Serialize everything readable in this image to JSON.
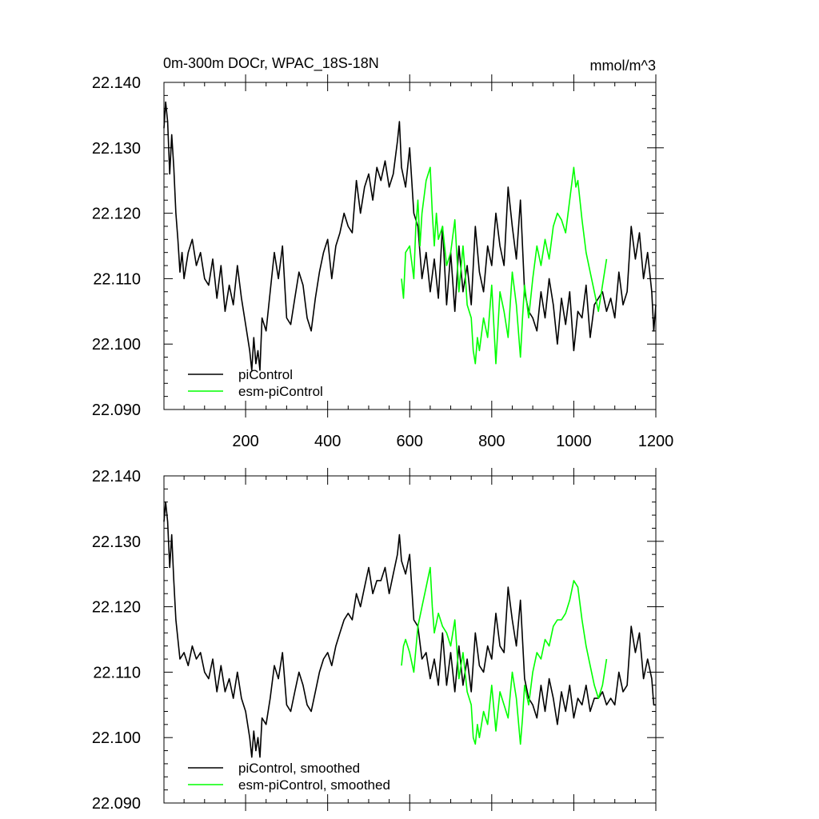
{
  "page": {
    "title_left": "0m-300m DOCr, WPAC_18S-18N",
    "title_right": "mmol/m^3"
  },
  "colors": {
    "piControl": "#000000",
    "esm": "#00ff00"
  },
  "chart_data": [
    {
      "type": "line",
      "panel": "top",
      "title": "0m-300m DOCr, WPAC_18S-18N",
      "units": "mmol/m^3",
      "xlim": [
        1,
        1200
      ],
      "ylim": [
        22.09,
        22.14
      ],
      "yticks": [
        "22.140",
        "22.130",
        "22.120",
        "22.110",
        "22.100",
        "22.090"
      ],
      "xticks": [
        "200",
        "400",
        "600",
        "800",
        "1000",
        "1200"
      ],
      "legend": [
        "piControl",
        "esm-piControl"
      ],
      "legend_position": "bottom-left",
      "series": [
        {
          "name": "piControl",
          "color": "#000000",
          "x": [
            1,
            5,
            10,
            15,
            20,
            25,
            30,
            35,
            40,
            45,
            50,
            60,
            70,
            80,
            90,
            100,
            110,
            120,
            130,
            140,
            150,
            160,
            170,
            180,
            190,
            200,
            210,
            215,
            220,
            225,
            230,
            235,
            240,
            250,
            260,
            270,
            280,
            290,
            300,
            310,
            320,
            330,
            340,
            350,
            360,
            370,
            380,
            390,
            400,
            410,
            420,
            430,
            440,
            450,
            460,
            470,
            480,
            490,
            500,
            510,
            520,
            530,
            540,
            550,
            560,
            570,
            575,
            580,
            590,
            600,
            610,
            620,
            630,
            640,
            650,
            660,
            670,
            680,
            690,
            700,
            710,
            720,
            730,
            740,
            750,
            760,
            770,
            780,
            790,
            800,
            810,
            820,
            830,
            840,
            850,
            860,
            870,
            880,
            890,
            900,
            910,
            920,
            930,
            940,
            950,
            960,
            970,
            980,
            990,
            1000,
            1010,
            1020,
            1030,
            1040,
            1050,
            1060,
            1070,
            1080,
            1090,
            1100,
            1110,
            1120,
            1130,
            1140,
            1150,
            1160,
            1170,
            1180,
            1190,
            1195,
            1200
          ],
          "y": [
            22.133,
            22.137,
            22.134,
            22.126,
            22.132,
            22.127,
            22.12,
            22.116,
            22.111,
            22.114,
            22.11,
            22.114,
            22.116,
            22.112,
            22.114,
            22.11,
            22.109,
            22.113,
            22.107,
            22.112,
            22.105,
            22.109,
            22.106,
            22.112,
            22.107,
            22.103,
            22.099,
            22.096,
            22.101,
            22.097,
            22.099,
            22.096,
            22.104,
            22.102,
            22.108,
            22.114,
            22.11,
            22.115,
            22.104,
            22.103,
            22.107,
            22.111,
            22.109,
            22.104,
            22.102,
            22.107,
            22.111,
            22.114,
            22.116,
            22.11,
            22.115,
            22.117,
            22.12,
            22.118,
            22.117,
            22.125,
            22.12,
            22.124,
            22.126,
            22.122,
            22.127,
            22.125,
            22.128,
            22.124,
            22.126,
            22.131,
            22.134,
            22.127,
            22.124,
            22.13,
            22.12,
            22.118,
            22.11,
            22.114,
            22.108,
            22.113,
            22.107,
            22.118,
            22.106,
            22.114,
            22.105,
            22.115,
            22.108,
            22.112,
            22.106,
            22.118,
            22.111,
            22.108,
            22.115,
            22.112,
            22.12,
            22.115,
            22.112,
            22.124,
            22.118,
            22.113,
            22.122,
            22.108,
            22.105,
            22.104,
            22.102,
            22.108,
            22.104,
            22.11,
            22.106,
            22.1,
            22.107,
            22.103,
            22.108,
            22.099,
            22.105,
            22.104,
            22.109,
            22.101,
            22.106,
            22.107,
            22.108,
            22.105,
            22.107,
            22.104,
            22.111,
            22.106,
            22.108,
            22.118,
            22.113,
            22.117,
            22.11,
            22.114,
            22.108,
            22.102,
            22.106
          ]
        },
        {
          "name": "esm-piControl",
          "color": "#00ff00",
          "x": [
            580,
            585,
            590,
            600,
            610,
            615,
            620,
            625,
            630,
            640,
            650,
            655,
            660,
            665,
            670,
            680,
            690,
            700,
            710,
            720,
            730,
            735,
            740,
            750,
            755,
            760,
            765,
            770,
            780,
            790,
            800,
            805,
            810,
            820,
            830,
            840,
            850,
            860,
            870,
            875,
            880,
            890,
            900,
            910,
            920,
            930,
            940,
            950,
            960,
            970,
            980,
            990,
            1000,
            1005,
            1010,
            1020,
            1030,
            1040,
            1050,
            1060,
            1070,
            1080
          ],
          "y": [
            22.11,
            22.107,
            22.114,
            22.115,
            22.11,
            22.118,
            22.122,
            22.115,
            22.12,
            22.125,
            22.127,
            22.12,
            22.115,
            22.12,
            22.116,
            22.118,
            22.112,
            22.114,
            22.119,
            22.108,
            22.115,
            22.111,
            22.106,
            22.104,
            22.099,
            22.097,
            22.101,
            22.099,
            22.104,
            22.101,
            22.109,
            22.103,
            22.097,
            22.108,
            22.105,
            22.101,
            22.111,
            22.106,
            22.098,
            22.104,
            22.109,
            22.104,
            22.11,
            22.115,
            22.112,
            22.116,
            22.113,
            22.118,
            22.12,
            22.119,
            22.117,
            22.122,
            22.127,
            22.124,
            22.125,
            22.119,
            22.114,
            22.111,
            22.108,
            22.105,
            22.109,
            22.113
          ]
        }
      ]
    },
    {
      "type": "line",
      "panel": "bottom",
      "title": "",
      "xlim": [
        1,
        1200
      ],
      "ylim": [
        22.09,
        22.14
      ],
      "yticks": [
        "22.140",
        "22.130",
        "22.120",
        "22.110",
        "22.100",
        "22.090"
      ],
      "legend": [
        "piControl, smoothed",
        "esm-piControl, smoothed"
      ],
      "legend_position": "bottom-left",
      "series": [
        {
          "name": "piControl, smoothed",
          "color": "#000000",
          "x": [
            1,
            5,
            10,
            15,
            20,
            25,
            30,
            40,
            50,
            60,
            70,
            80,
            90,
            100,
            110,
            120,
            130,
            140,
            150,
            160,
            170,
            180,
            190,
            200,
            210,
            215,
            220,
            225,
            230,
            235,
            240,
            250,
            260,
            270,
            280,
            290,
            300,
            310,
            320,
            330,
            340,
            350,
            360,
            370,
            380,
            390,
            400,
            410,
            420,
            430,
            440,
            450,
            460,
            470,
            480,
            490,
            500,
            510,
            520,
            530,
            540,
            550,
            560,
            570,
            575,
            580,
            590,
            600,
            610,
            620,
            630,
            640,
            650,
            660,
            670,
            680,
            690,
            700,
            710,
            720,
            730,
            740,
            750,
            760,
            770,
            780,
            790,
            800,
            810,
            820,
            830,
            840,
            850,
            860,
            870,
            880,
            890,
            900,
            910,
            920,
            930,
            940,
            950,
            960,
            970,
            980,
            990,
            1000,
            1010,
            1020,
            1030,
            1040,
            1050,
            1060,
            1070,
            1080,
            1090,
            1100,
            1110,
            1120,
            1130,
            1140,
            1150,
            1160,
            1170,
            1180,
            1190,
            1195,
            1200
          ],
          "y": [
            22.133,
            22.136,
            22.133,
            22.126,
            22.131,
            22.124,
            22.118,
            22.112,
            22.113,
            22.111,
            22.114,
            22.112,
            22.113,
            22.11,
            22.109,
            22.112,
            22.107,
            22.111,
            22.107,
            22.109,
            22.106,
            22.11,
            22.106,
            22.104,
            22.1,
            22.097,
            22.101,
            22.098,
            22.1,
            22.097,
            22.103,
            22.102,
            22.106,
            22.111,
            22.109,
            22.113,
            22.105,
            22.104,
            22.107,
            22.11,
            22.108,
            22.105,
            22.104,
            22.107,
            22.11,
            22.112,
            22.113,
            22.111,
            22.114,
            22.116,
            22.118,
            22.119,
            22.118,
            22.122,
            22.12,
            22.123,
            22.126,
            22.122,
            22.124,
            22.124,
            22.126,
            22.122,
            22.125,
            22.128,
            22.131,
            22.127,
            22.125,
            22.128,
            22.118,
            22.117,
            22.112,
            22.113,
            22.109,
            22.112,
            22.108,
            22.116,
            22.108,
            22.113,
            22.107,
            22.114,
            22.108,
            22.112,
            22.107,
            22.116,
            22.111,
            22.11,
            22.114,
            22.112,
            22.119,
            22.114,
            22.113,
            22.123,
            22.118,
            22.114,
            22.121,
            22.109,
            22.106,
            22.105,
            22.103,
            22.108,
            22.104,
            22.109,
            22.106,
            22.102,
            22.107,
            22.104,
            22.108,
            22.103,
            22.106,
            22.105,
            22.108,
            22.104,
            22.106,
            22.106,
            22.107,
            22.105,
            22.106,
            22.105,
            22.11,
            22.107,
            22.108,
            22.117,
            22.113,
            22.116,
            22.109,
            22.112,
            22.109,
            22.105,
            22.105
          ]
        },
        {
          "name": "esm-piControl, smoothed",
          "color": "#00ff00",
          "x": [
            580,
            585,
            590,
            600,
            610,
            620,
            630,
            640,
            650,
            655,
            660,
            670,
            680,
            690,
            700,
            710,
            720,
            730,
            740,
            750,
            755,
            760,
            765,
            770,
            780,
            790,
            800,
            810,
            820,
            830,
            840,
            850,
            860,
            870,
            875,
            880,
            890,
            900,
            910,
            920,
            930,
            940,
            950,
            960,
            970,
            980,
            990,
            1000,
            1010,
            1020,
            1030,
            1040,
            1050,
            1060,
            1070,
            1080
          ],
          "y": [
            22.111,
            22.114,
            22.115,
            22.113,
            22.11,
            22.117,
            22.12,
            22.123,
            22.126,
            22.12,
            22.116,
            22.119,
            22.117,
            22.116,
            22.114,
            22.118,
            22.109,
            22.113,
            22.107,
            22.105,
            22.1,
            22.099,
            22.102,
            22.1,
            22.104,
            22.102,
            22.108,
            22.101,
            22.107,
            22.105,
            22.103,
            22.11,
            22.106,
            22.099,
            22.103,
            22.108,
            22.105,
            22.11,
            22.113,
            22.112,
            22.115,
            22.114,
            22.117,
            22.118,
            22.118,
            22.119,
            22.121,
            22.124,
            22.123,
            22.118,
            22.114,
            22.111,
            22.108,
            22.106,
            22.108,
            22.112
          ]
        }
      ]
    }
  ]
}
